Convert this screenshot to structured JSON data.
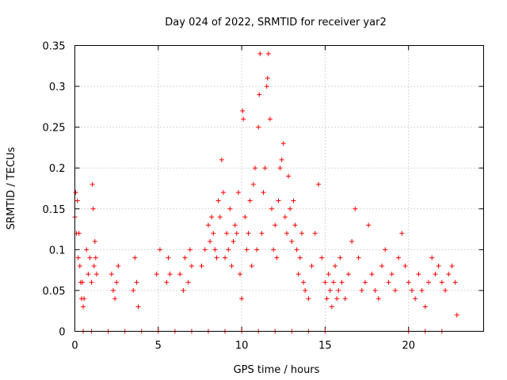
{
  "chart_data": {
    "type": "scatter",
    "title": "Day 024 of 2022, SRMTID for receiver yar2",
    "xlabel": "GPS time / hours",
    "ylabel": "SRMTID / TECUs",
    "xlim": [
      0,
      24.5
    ],
    "ylim": [
      0,
      0.35
    ],
    "x_ticks": [
      0,
      5,
      10,
      15,
      20
    ],
    "x_tick_labels": [
      "0",
      "5",
      "10",
      "15",
      "20"
    ],
    "y_ticks": [
      0,
      0.05,
      0.1,
      0.15,
      0.2,
      0.25,
      0.3,
      0.35
    ],
    "y_tick_labels": [
      "0",
      "0.05",
      "0.1",
      "0.15",
      "0.2",
      "0.25",
      "0.3",
      "0.35"
    ],
    "grid": true,
    "marker": "+",
    "marker_color": "#ff0000",
    "series": [
      {
        "name": "SRMTID",
        "points": [
          [
            0.0,
            0.14
          ],
          [
            0.05,
            0.17
          ],
          [
            0.1,
            0.12
          ],
          [
            0.15,
            0.16
          ],
          [
            0.2,
            0.09
          ],
          [
            0.25,
            0.12
          ],
          [
            0.3,
            0.08
          ],
          [
            0.35,
            0.06
          ],
          [
            0.4,
            0.04
          ],
          [
            0.45,
            0.06
          ],
          [
            0.5,
            0.03
          ],
          [
            0.55,
            0.04
          ],
          [
            0.7,
            0.1
          ],
          [
            0.8,
            0.07
          ],
          [
            0.9,
            0.09
          ],
          [
            1.0,
            0.06
          ],
          [
            1.05,
            0.18
          ],
          [
            1.1,
            0.15
          ],
          [
            1.15,
            0.08
          ],
          [
            1.2,
            0.11
          ],
          [
            1.25,
            0.09
          ],
          [
            1.3,
            0.07
          ],
          [
            2.2,
            0.07
          ],
          [
            2.3,
            0.05
          ],
          [
            2.4,
            0.04
          ],
          [
            2.5,
            0.06
          ],
          [
            2.6,
            0.08
          ],
          [
            3.5,
            0.05
          ],
          [
            3.6,
            0.09
          ],
          [
            3.7,
            0.06
          ],
          [
            3.8,
            0.03
          ],
          [
            4.9,
            0.07
          ],
          [
            5.1,
            0.1
          ],
          [
            5.5,
            0.06
          ],
          [
            5.6,
            0.09
          ],
          [
            5.7,
            0.07
          ],
          [
            6.3,
            0.07
          ],
          [
            6.5,
            0.05
          ],
          [
            6.6,
            0.09
          ],
          [
            6.8,
            0.06
          ],
          [
            6.9,
            0.1
          ],
          [
            7.0,
            0.08
          ],
          [
            7.6,
            0.08
          ],
          [
            7.8,
            0.1
          ],
          [
            8.0,
            0.13
          ],
          [
            8.1,
            0.11
          ],
          [
            8.2,
            0.14
          ],
          [
            8.3,
            0.12
          ],
          [
            8.4,
            0.1
          ],
          [
            8.5,
            0.09
          ],
          [
            8.6,
            0.16
          ],
          [
            8.7,
            0.14
          ],
          [
            8.8,
            0.21
          ],
          [
            8.9,
            0.17
          ],
          [
            9.0,
            0.09
          ],
          [
            9.1,
            0.12
          ],
          [
            9.2,
            0.1
          ],
          [
            9.3,
            0.15
          ],
          [
            9.4,
            0.08
          ],
          [
            9.5,
            0.11
          ],
          [
            9.6,
            0.13
          ],
          [
            9.7,
            0.12
          ],
          [
            9.8,
            0.17
          ],
          [
            9.9,
            0.07
          ],
          [
            10.0,
            0.04
          ],
          [
            10.05,
            0.27
          ],
          [
            10.1,
            0.26
          ],
          [
            10.2,
            0.14
          ],
          [
            10.3,
            0.1
          ],
          [
            10.4,
            0.12
          ],
          [
            10.5,
            0.16
          ],
          [
            10.6,
            0.08
          ],
          [
            10.7,
            0.18
          ],
          [
            10.8,
            0.2
          ],
          [
            10.9,
            0.1
          ],
          [
            11.0,
            0.25
          ],
          [
            11.05,
            0.29
          ],
          [
            11.1,
            0.34
          ],
          [
            11.2,
            0.12
          ],
          [
            11.3,
            0.17
          ],
          [
            11.4,
            0.2
          ],
          [
            11.5,
            0.3
          ],
          [
            11.55,
            0.31
          ],
          [
            11.6,
            0.34
          ],
          [
            11.7,
            0.26
          ],
          [
            11.8,
            0.15
          ],
          [
            11.9,
            0.1
          ],
          [
            12.0,
            0.13
          ],
          [
            12.1,
            0.09
          ],
          [
            12.2,
            0.16
          ],
          [
            12.3,
            0.2
          ],
          [
            12.4,
            0.21
          ],
          [
            12.5,
            0.23
          ],
          [
            12.6,
            0.14
          ],
          [
            12.7,
            0.12
          ],
          [
            12.8,
            0.19
          ],
          [
            12.9,
            0.15
          ],
          [
            13.0,
            0.11
          ],
          [
            13.1,
            0.16
          ],
          [
            13.2,
            0.13
          ],
          [
            13.3,
            0.1
          ],
          [
            13.4,
            0.07
          ],
          [
            13.5,
            0.09
          ],
          [
            13.6,
            0.12
          ],
          [
            13.7,
            0.06
          ],
          [
            13.8,
            0.05
          ],
          [
            14.0,
            0.04
          ],
          [
            14.2,
            0.08
          ],
          [
            14.4,
            0.12
          ],
          [
            14.6,
            0.18
          ],
          [
            14.8,
            0.09
          ],
          [
            15.0,
            0.06
          ],
          [
            15.1,
            0.04
          ],
          [
            15.2,
            0.07
          ],
          [
            15.3,
            0.05
          ],
          [
            15.4,
            0.03
          ],
          [
            15.5,
            0.06
          ],
          [
            15.6,
            0.08
          ],
          [
            15.7,
            0.04
          ],
          [
            15.8,
            0.05
          ],
          [
            15.9,
            0.09
          ],
          [
            16.0,
            0.06
          ],
          [
            16.2,
            0.04
          ],
          [
            16.4,
            0.07
          ],
          [
            16.6,
            0.11
          ],
          [
            16.8,
            0.15
          ],
          [
            17.0,
            0.09
          ],
          [
            17.2,
            0.05
          ],
          [
            17.4,
            0.06
          ],
          [
            17.6,
            0.13
          ],
          [
            17.8,
            0.07
          ],
          [
            18.0,
            0.05
          ],
          [
            18.2,
            0.04
          ],
          [
            18.4,
            0.08
          ],
          [
            18.6,
            0.1
          ],
          [
            18.8,
            0.06
          ],
          [
            19.0,
            0.07
          ],
          [
            19.2,
            0.05
          ],
          [
            19.4,
            0.09
          ],
          [
            19.6,
            0.12
          ],
          [
            19.8,
            0.08
          ],
          [
            20.0,
            0.06
          ],
          [
            20.2,
            0.05
          ],
          [
            20.4,
            0.04
          ],
          [
            20.6,
            0.07
          ],
          [
            20.8,
            0.05
          ],
          [
            21.0,
            0.03
          ],
          [
            21.2,
            0.06
          ],
          [
            21.4,
            0.09
          ],
          [
            21.6,
            0.07
          ],
          [
            21.8,
            0.08
          ],
          [
            22.0,
            0.06
          ],
          [
            22.2,
            0.05
          ],
          [
            22.4,
            0.07
          ],
          [
            22.6,
            0.08
          ],
          [
            22.8,
            0.06
          ],
          [
            22.9,
            0.02
          ],
          [
            0.5,
            0.0
          ],
          [
            1.0,
            0.0
          ],
          [
            2.0,
            0.0
          ],
          [
            3.0,
            0.0
          ],
          [
            4.0,
            0.0
          ],
          [
            5.0,
            0.0
          ],
          [
            6.0,
            0.0
          ],
          [
            7.0,
            0.0
          ],
          [
            8.0,
            0.0
          ],
          [
            9.0,
            0.0
          ],
          [
            10.0,
            0.0
          ],
          [
            11.0,
            0.0
          ],
          [
            12.0,
            0.0
          ],
          [
            13.0,
            0.0
          ],
          [
            14.0,
            0.0
          ],
          [
            15.0,
            0.0
          ],
          [
            20.0,
            0.0
          ],
          [
            21.0,
            0.0
          ],
          [
            22.0,
            0.0
          ]
        ]
      }
    ]
  }
}
